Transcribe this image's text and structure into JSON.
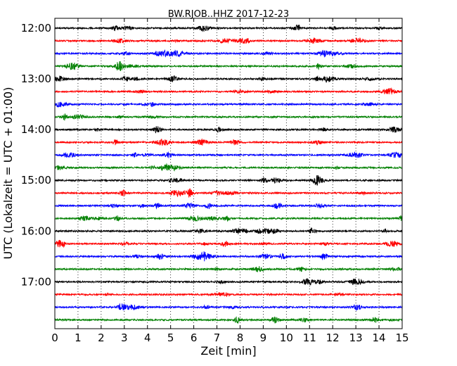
{
  "chart_data": {
    "type": "line",
    "title": "BW.RJOB..HHZ 2017-12-23",
    "xlabel": "Zeit  [min]",
    "ylabel": "UTC (Lokalzeit = UTC + 01:00)",
    "xlim": [
      0,
      15
    ],
    "x_ticks": [
      "0",
      "1",
      "2",
      "3",
      "4",
      "5",
      "6",
      "7",
      "8",
      "9",
      "10",
      "11",
      "12",
      "13",
      "14",
      "15"
    ],
    "y_ticks": [
      "12:00",
      "13:00",
      "14:00",
      "15:00",
      "16:00",
      "17:00"
    ],
    "grid": "vertical dotted",
    "trace_interval_minutes": 15,
    "trace_colors": [
      "#000000",
      "#ff0000",
      "#0000ff",
      "#008000"
    ],
    "series": [
      {
        "start": "12:00",
        "color": "#000000"
      },
      {
        "start": "12:15",
        "color": "#ff0000"
      },
      {
        "start": "12:30",
        "color": "#0000ff"
      },
      {
        "start": "12:45",
        "color": "#008000"
      },
      {
        "start": "13:00",
        "color": "#000000"
      },
      {
        "start": "13:15",
        "color": "#ff0000"
      },
      {
        "start": "13:30",
        "color": "#0000ff"
      },
      {
        "start": "13:45",
        "color": "#008000"
      },
      {
        "start": "14:00",
        "color": "#000000"
      },
      {
        "start": "14:15",
        "color": "#ff0000"
      },
      {
        "start": "14:30",
        "color": "#0000ff"
      },
      {
        "start": "14:45",
        "color": "#008000"
      },
      {
        "start": "15:00",
        "color": "#000000"
      },
      {
        "start": "15:15",
        "color": "#ff0000"
      },
      {
        "start": "15:30",
        "color": "#0000ff"
      },
      {
        "start": "15:45",
        "color": "#008000"
      },
      {
        "start": "16:00",
        "color": "#000000"
      },
      {
        "start": "16:15",
        "color": "#ff0000"
      },
      {
        "start": "16:30",
        "color": "#0000ff"
      },
      {
        "start": "16:45",
        "color": "#008000"
      },
      {
        "start": "17:00",
        "color": "#000000"
      },
      {
        "start": "17:15",
        "color": "#ff0000"
      },
      {
        "start": "17:30",
        "color": "#0000ff"
      },
      {
        "start": "17:45",
        "color": "#008000"
      }
    ]
  }
}
